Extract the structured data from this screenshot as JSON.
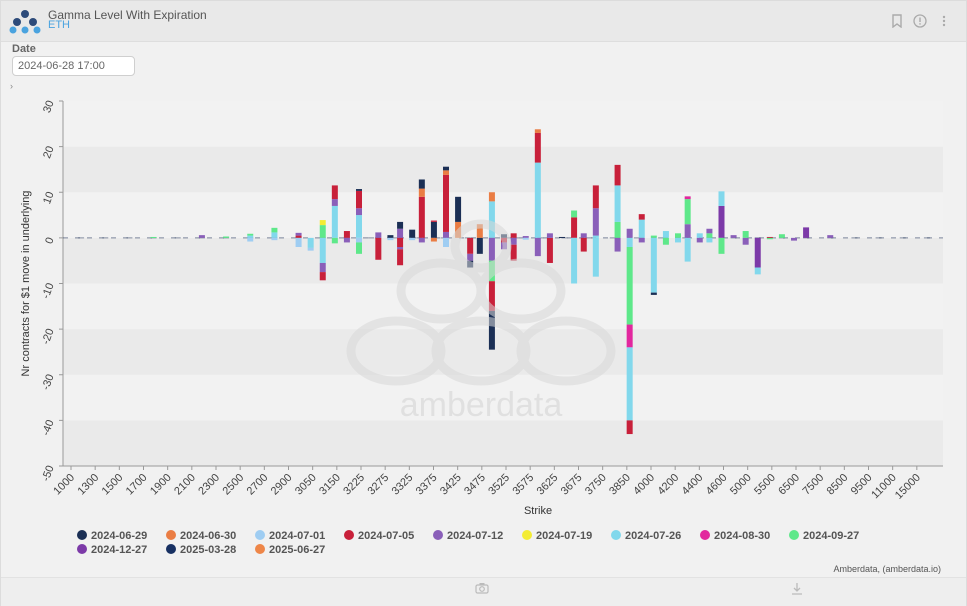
{
  "header": {
    "title": "Gamma Level With Expiration",
    "subtitle": "ETH",
    "icons": [
      "bookmark-icon",
      "info-icon",
      "more-icon"
    ]
  },
  "filters": {
    "date_label": "Date",
    "date_value": "2024-06-28 17:00"
  },
  "watermark": {
    "text": "amberdata"
  },
  "footer": {
    "credit": "Amberdata, (amberdata.io)"
  },
  "colors": {
    "2024-06-29": "#1b2f55",
    "2024-06-30": "#ea7d44",
    "2024-07-01": "#9fcdf2",
    "2024-07-05": "#c8203a",
    "2024-07-12": "#8a5fb9",
    "2024-07-19": "#f3ec34",
    "2024-07-26": "#82d8ec",
    "2024-08-30": "#e2279e",
    "2024-09-27": "#5ee88a",
    "2024-12-27": "#7c3aa8",
    "2025-03-28": "#173062",
    "2025-06-27": "#ee8648"
  },
  "chart_data": {
    "type": "bar",
    "stacked": true,
    "ylabel": "Nr contracts for $1 move in underlying",
    "xlabel": "Strike",
    "ylim": [
      -50,
      30
    ],
    "yticks": [
      -50,
      -40,
      -30,
      -20,
      -10,
      0,
      10,
      20,
      30
    ],
    "grid": "horizontal bands",
    "legend_position": "bottom",
    "categories": [
      "1000",
      "1300",
      "1500",
      "1700",
      "1900",
      "2100",
      "2300",
      "2500",
      "2700",
      "2900",
      "3050",
      "3150",
      "3225",
      "3275",
      "3325",
      "3375",
      "3425",
      "3475",
      "3525",
      "3575",
      "3625",
      "3675",
      "3750",
      "3850",
      "4000",
      "4200",
      "4400",
      "4600",
      "5000",
      "5500",
      "6500",
      "7500",
      "8500",
      "9500",
      "11000",
      "15000"
    ],
    "bars": [
      {
        "x": 3,
        "segs": [
          [
            "2024-09-27",
            0.2
          ]
        ]
      },
      {
        "x": 5,
        "segs": [
          [
            "2024-07-12",
            0.6
          ]
        ]
      },
      {
        "x": 6,
        "segs": [
          [
            "2024-09-27",
            0.3
          ]
        ]
      },
      {
        "x": 7,
        "segs": [
          [
            "2024-07-26",
            0.5
          ],
          [
            "2024-09-27",
            0.4
          ],
          [
            "2024-07-01",
            -0.8
          ]
        ]
      },
      {
        "x": 8,
        "segs": [
          [
            "2024-07-26",
            1.2
          ],
          [
            "2024-09-27",
            1.0
          ],
          [
            "2024-07-01",
            -0.5
          ]
        ]
      },
      {
        "x": 9,
        "segs": [
          [
            "2024-07-05",
            0.5
          ],
          [
            "2024-07-12",
            0.6
          ],
          [
            "2024-07-01",
            -2.0
          ]
        ]
      },
      {
        "x": 9.5,
        "segs": [
          [
            "2024-07-26",
            -2.2
          ],
          [
            "2024-07-01",
            -0.6
          ]
        ]
      },
      {
        "x": 10,
        "segs": [
          [
            "2024-09-27",
            2.8
          ],
          [
            "2024-07-19",
            1.1
          ],
          [
            "2024-07-26",
            -5.5
          ],
          [
            "2024-07-12",
            -2.0
          ],
          [
            "2024-07-05",
            -1.8
          ]
        ]
      },
      {
        "x": 10.5,
        "segs": [
          [
            "2024-07-26",
            7.0
          ],
          [
            "2024-07-12",
            1.5
          ],
          [
            "2024-07-05",
            3.0
          ],
          [
            "2024-09-27",
            -1.2
          ]
        ]
      },
      {
        "x": 11,
        "segs": [
          [
            "2024-07-05",
            1.5
          ],
          [
            "2024-07-12",
            -1.0
          ]
        ]
      },
      {
        "x": 11.5,
        "segs": [
          [
            "2024-07-26",
            5.0
          ],
          [
            "2024-07-12",
            1.5
          ],
          [
            "2024-07-05",
            3.8
          ],
          [
            "2024-06-29",
            0.4
          ],
          [
            "2024-07-01",
            -1.0
          ],
          [
            "2024-09-27",
            -2.5
          ]
        ]
      },
      {
        "x": 12.3,
        "segs": [
          [
            "2024-07-12",
            1.2
          ],
          [
            "2024-07-05",
            -4.8
          ]
        ]
      },
      {
        "x": 12.8,
        "segs": [
          [
            "2024-06-29",
            0.6
          ],
          [
            "2024-07-01",
            -0.5
          ]
        ]
      },
      {
        "x": 13.2,
        "segs": [
          [
            "2024-07-12",
            2.0
          ],
          [
            "2024-06-29",
            1.5
          ],
          [
            "2024-07-05",
            -2.0
          ],
          [
            "2024-07-12",
            -0.5
          ],
          [
            "2024-07-05",
            -3.5
          ]
        ]
      },
      {
        "x": 13.7,
        "segs": [
          [
            "2024-06-29",
            1.8
          ],
          [
            "2024-07-01",
            -0.5
          ]
        ]
      },
      {
        "x": 14.1,
        "segs": [
          [
            "2024-07-05",
            9.0
          ],
          [
            "2024-06-30",
            1.8
          ],
          [
            "2024-06-29",
            2.0
          ],
          [
            "2024-07-12",
            -1.0
          ]
        ]
      },
      {
        "x": 14.6,
        "segs": [
          [
            "2024-06-29",
            3.5
          ],
          [
            "2024-07-05",
            0.3
          ],
          [
            "2024-06-30",
            -0.8
          ]
        ]
      },
      {
        "x": 15.1,
        "segs": [
          [
            "2024-07-12",
            1.3
          ],
          [
            "2024-07-05",
            12.5
          ],
          [
            "2024-06-30",
            1.0
          ],
          [
            "2024-06-29",
            0.8
          ],
          [
            "2024-07-01",
            -2.0
          ]
        ]
      },
      {
        "x": 15.6,
        "segs": [
          [
            "2024-06-30",
            3.5
          ],
          [
            "2024-06-29",
            5.5
          ]
        ]
      },
      {
        "x": 16.1,
        "segs": [
          [
            "2024-07-05",
            -3.5
          ],
          [
            "2024-07-12",
            -1.5
          ],
          [
            "2024-06-29",
            -1.5
          ]
        ]
      },
      {
        "x": 16.5,
        "segs": [
          [
            "2024-06-30",
            3.0
          ],
          [
            "2024-06-29",
            -3.5
          ]
        ]
      },
      {
        "x": 17.0,
        "segs": [
          [
            "2024-07-26",
            8.0
          ],
          [
            "2024-06-30",
            2.0
          ],
          [
            "2024-07-12",
            -5.0
          ],
          [
            "2024-09-27",
            -4.5
          ],
          [
            "2024-07-05",
            -6.5
          ],
          [
            "2024-06-29",
            -8.5
          ]
        ]
      },
      {
        "x": 17.5,
        "segs": [
          [
            "2024-06-29",
            0.8
          ],
          [
            "2024-07-05",
            -1.0
          ],
          [
            "2024-07-12",
            -1.5
          ]
        ]
      },
      {
        "x": 17.9,
        "segs": [
          [
            "2024-07-05",
            1.0
          ],
          [
            "2024-07-12",
            -1.5
          ],
          [
            "2024-07-05",
            -3.5
          ]
        ]
      },
      {
        "x": 18.4,
        "segs": [
          [
            "2024-07-12",
            0.4
          ],
          [
            "2024-07-01",
            -0.4
          ]
        ]
      },
      {
        "x": 18.9,
        "segs": [
          [
            "2024-07-26",
            16.5
          ],
          [
            "2024-07-05",
            6.5
          ],
          [
            "2024-06-30",
            0.8
          ],
          [
            "2024-07-12",
            -4.0
          ]
        ]
      },
      {
        "x": 19.4,
        "segs": [
          [
            "2024-07-05",
            -5.5
          ],
          [
            "2024-07-12",
            1.0
          ]
        ]
      },
      {
        "x": 19.9,
        "segs": [
          [
            "2024-06-29",
            0.2
          ]
        ]
      },
      {
        "x": 20.4,
        "segs": [
          [
            "2024-07-05",
            4.5
          ],
          [
            "2024-09-27",
            1.5
          ],
          [
            "2024-07-26",
            -10.0
          ]
        ]
      },
      {
        "x": 20.8,
        "segs": [
          [
            "2024-07-12",
            1.0
          ],
          [
            "2024-07-05",
            -3.0
          ]
        ]
      },
      {
        "x": 21.3,
        "segs": [
          [
            "2024-07-26",
            0.5
          ],
          [
            "2024-07-12",
            6.0
          ],
          [
            "2024-07-05",
            5.0
          ],
          [
            "2024-07-26",
            -8.5
          ]
        ]
      },
      {
        "x": 22.2,
        "segs": [
          [
            "2024-09-27",
            3.5
          ],
          [
            "2024-07-26",
            8.0
          ],
          [
            "2024-07-05",
            4.5
          ],
          [
            "2024-07-12",
            -3.0
          ]
        ]
      },
      {
        "x": 22.7,
        "segs": [
          [
            "2024-07-12",
            2.0
          ],
          [
            "2024-07-26",
            -2.0
          ],
          [
            "2024-09-27",
            -17.0
          ],
          [
            "2024-08-30",
            -5.0
          ],
          [
            "2024-07-26",
            -16.0
          ],
          [
            "2024-07-05",
            -3.0
          ]
        ]
      },
      {
        "x": 23.2,
        "segs": [
          [
            "2024-07-26",
            4.0
          ],
          [
            "2024-07-05",
            1.2
          ],
          [
            "2024-07-12",
            -1.0
          ]
        ]
      },
      {
        "x": 23.7,
        "segs": [
          [
            "2024-09-27",
            0.5
          ],
          [
            "2024-07-26",
            -12.0
          ],
          [
            "2024-06-29",
            -0.5
          ]
        ]
      },
      {
        "x": 24.2,
        "segs": [
          [
            "2024-07-26",
            1.5
          ],
          [
            "2024-09-27",
            -1.5
          ]
        ]
      },
      {
        "x": 24.7,
        "segs": [
          [
            "2024-09-27",
            1.0
          ],
          [
            "2024-07-26",
            -1.0
          ]
        ]
      },
      {
        "x": 25.1,
        "segs": [
          [
            "2024-07-12",
            3.0
          ],
          [
            "2024-09-27",
            5.5
          ],
          [
            "2024-08-30",
            0.6
          ],
          [
            "2024-07-26",
            -5.2
          ]
        ]
      },
      {
        "x": 25.6,
        "segs": [
          [
            "2024-07-26",
            1.0
          ],
          [
            "2024-07-12",
            -1.0
          ]
        ]
      },
      {
        "x": 26.0,
        "segs": [
          [
            "2024-09-27",
            1.0
          ],
          [
            "2024-07-12",
            1.0
          ],
          [
            "2024-07-26",
            -1.0
          ]
        ]
      },
      {
        "x": 26.5,
        "segs": [
          [
            "2024-12-27",
            7.0
          ],
          [
            "2024-07-26",
            3.2
          ],
          [
            "2024-09-27",
            -3.5
          ]
        ]
      },
      {
        "x": 27.0,
        "segs": [
          [
            "2024-07-12",
            0.6
          ]
        ]
      },
      {
        "x": 27.5,
        "segs": [
          [
            "2024-09-27",
            1.5
          ],
          [
            "2024-07-12",
            -1.5
          ]
        ]
      },
      {
        "x": 28.0,
        "segs": [
          [
            "2024-12-27",
            -6.5
          ],
          [
            "2024-07-26",
            -1.5
          ]
        ]
      },
      {
        "x": 28.5,
        "segs": [
          [
            "2024-07-05",
            0.2
          ],
          [
            "2024-09-27",
            -0.3
          ]
        ]
      },
      {
        "x": 29.0,
        "segs": [
          [
            "2024-09-27",
            0.8
          ]
        ]
      },
      {
        "x": 29.5,
        "segs": [
          [
            "2024-07-12",
            -0.6
          ]
        ]
      },
      {
        "x": 30.0,
        "segs": [
          [
            "2024-12-27",
            2.3
          ]
        ]
      },
      {
        "x": 31.0,
        "segs": [
          [
            "2024-07-12",
            0.6
          ]
        ]
      }
    ]
  },
  "legend": [
    "2024-06-29",
    "2024-06-30",
    "2024-07-01",
    "2024-07-05",
    "2024-07-12",
    "2024-07-19",
    "2024-07-26",
    "2024-08-30",
    "2024-09-27",
    "2024-12-27",
    "2025-03-28",
    "2025-06-27"
  ]
}
